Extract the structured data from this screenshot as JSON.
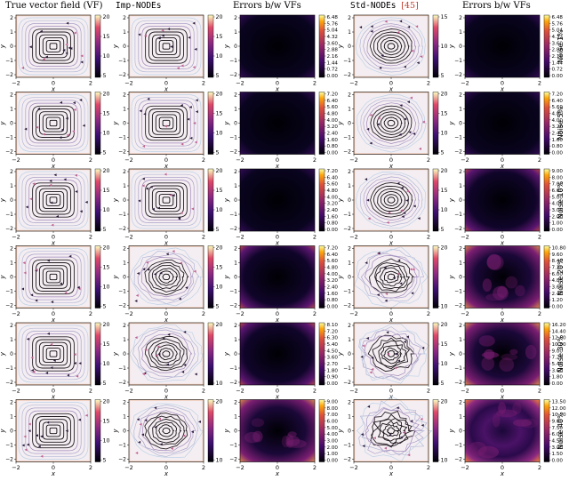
{
  "headers": {
    "true_vf": "True vector field (VF)",
    "imp_nodes": "Imp-NODEs",
    "errors_1": "Errors b/w VFs",
    "std_nodes": "Std-NODEs",
    "std_ref": "[45]",
    "errors_2": "Errors b/w VFs"
  },
  "axis": {
    "xlabel": "x",
    "ylabel": "y",
    "x_ticks": [
      "−2",
      "0",
      "2"
    ],
    "y_ticks": [
      "2",
      "1",
      "0",
      "−1",
      "−2"
    ]
  },
  "colors": {
    "accent_ref": "#c0392b",
    "stream_dark": "#000000",
    "stream_light": "#e8e0f0",
    "field_bg": "#f4eef2",
    "error_dark": "#0b0424",
    "error_hot": "#fcb040"
  },
  "chart_data": {
    "type": "heatmap",
    "description_rows": "6 noise levels x 5 panels: true VF streamplot, Imp-NODEs streamplot, error heatmap, Std-NODEs streamplot, error heatmap",
    "rows": [
      {
        "noise_label": "Noise 1%",
        "true_vf_cbar": [
          "20",
          "15",
          "10",
          "5"
        ],
        "imp_cbar": [
          "20",
          "15",
          "10",
          "5"
        ],
        "err1_cbar": [
          "6.48",
          "5.76",
          "5.04",
          "4.32",
          "3.60",
          "2.88",
          "2.16",
          "1.44",
          "0.72",
          "0.00"
        ],
        "std_cbar": [
          "15",
          "10",
          "5"
        ],
        "err2_cbar": [
          "6.48",
          "5.76",
          "5.04",
          "4.32",
          "3.60",
          "2.88",
          "2.16",
          "1.44",
          "0.72",
          "0.00"
        ]
      },
      {
        "noise_label": "Noise 5%",
        "true_vf_cbar": [
          "20",
          "15",
          "10",
          "5"
        ],
        "imp_cbar": [
          "20",
          "15",
          "10",
          "5"
        ],
        "err1_cbar": [
          "7.20",
          "6.40",
          "5.60",
          "4.80",
          "4.00",
          "3.20",
          "2.40",
          "1.60",
          "0.80",
          "0.00"
        ],
        "std_cbar": [
          "20",
          "15",
          "10",
          "5"
        ],
        "err2_cbar": [
          "7.20",
          "6.40",
          "5.60",
          "4.80",
          "4.00",
          "3.20",
          "2.40",
          "1.60",
          "0.80",
          "0.00"
        ]
      },
      {
        "noise_label": "Noise 10%",
        "true_vf_cbar": [
          "20",
          "15",
          "10",
          "5"
        ],
        "imp_cbar": [
          "20",
          "15",
          "10",
          "5"
        ],
        "err1_cbar": [
          "7.20",
          "6.40",
          "5.60",
          "4.80",
          "4.00",
          "3.20",
          "2.40",
          "1.60",
          "0.80",
          "0.00"
        ],
        "std_cbar": [
          "20",
          "15",
          "10",
          "5"
        ],
        "err2_cbar": [
          "9.00",
          "8.00",
          "7.00",
          "6.00",
          "5.00",
          "4.00",
          "3.00",
          "2.00",
          "1.00",
          "0.00"
        ]
      },
      {
        "noise_label": "Noise 20%",
        "true_vf_cbar": [
          "20",
          "15",
          "10",
          "5"
        ],
        "imp_cbar": [
          "20",
          "15",
          "10",
          "5"
        ],
        "err1_cbar": [
          "7.20",
          "6.40",
          "5.60",
          "4.80",
          "4.00",
          "3.20",
          "2.40",
          "1.60",
          "0.80",
          "0.00"
        ],
        "std_cbar": [
          "20",
          "10"
        ],
        "err2_cbar": [
          "10.80",
          "9.60",
          "8.40",
          "7.20",
          "6.00",
          "4.80",
          "3.60",
          "2.40",
          "1.20",
          "0.00"
        ]
      },
      {
        "noise_label": "Noise 30%",
        "true_vf_cbar": [
          "20",
          "15",
          "10",
          "5"
        ],
        "imp_cbar": [
          "20",
          "10"
        ],
        "err1_cbar": [
          "8.10",
          "7.20",
          "6.30",
          "5.40",
          "4.50",
          "3.60",
          "2.70",
          "1.80",
          "0.90",
          "0.00"
        ],
        "std_cbar": [
          "20",
          "15",
          "10",
          "5"
        ],
        "err2_cbar": [
          "16.20",
          "14.40",
          "12.60",
          "10.80",
          "9.00",
          "7.20",
          "5.40",
          "3.60",
          "1.80",
          "0.00"
        ]
      },
      {
        "noise_label": "Noise 40%",
        "true_vf_cbar": [
          "20",
          "15",
          "10",
          "5"
        ],
        "imp_cbar": [
          "20",
          "10"
        ],
        "err1_cbar": [
          "9.00",
          "8.00",
          "7.00",
          "6.00",
          "5.00",
          "4.00",
          "3.00",
          "2.00",
          "1.00",
          "0.00"
        ],
        "std_cbar": [
          "20",
          "10"
        ],
        "err2_cbar": [
          "13.50",
          "12.00",
          "10.50",
          "9.00",
          "7.50",
          "6.00",
          "4.50",
          "3.00",
          "1.50",
          "0.00"
        ]
      }
    ]
  }
}
